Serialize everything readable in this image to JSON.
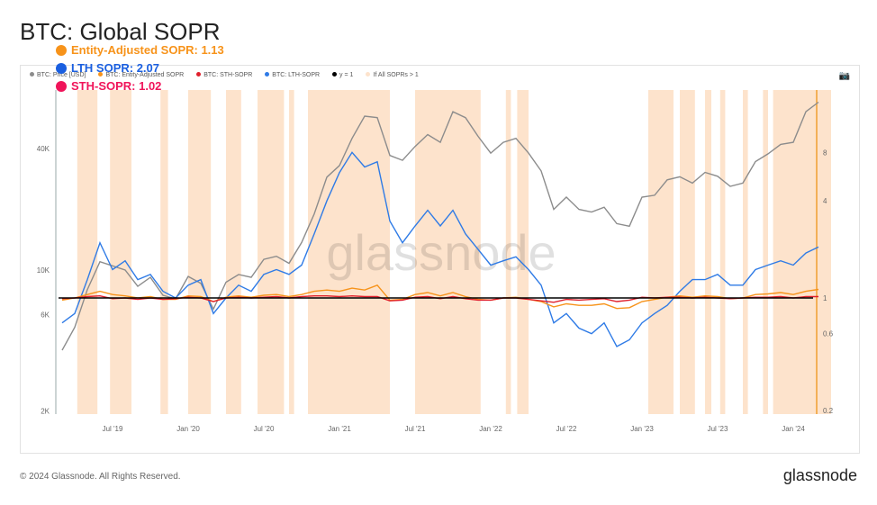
{
  "title": "BTC: Global SOPR",
  "footer": "© 2024 Glassnode. All Rights Reserved.",
  "brand": "glassnode",
  "watermark": "glassnode",
  "camera_icon": "camera-icon",
  "annotations": [
    {
      "label": "Entity-Adjusted SOPR: 1.13",
      "color": "#f7931a"
    },
    {
      "label": "LTH SOPR: 2.07",
      "color": "#1a5fe0"
    },
    {
      "label": "STH-SOPR: 1.02",
      "color": "#f0145a"
    }
  ],
  "chart_data": {
    "type": "line",
    "title": "BTC: Global SOPR",
    "x_start": "2019-03",
    "x_step": "month",
    "legend": [
      {
        "name": "BTC: Price [USD]",
        "color": "#8c8c8c"
      },
      {
        "name": "BTC: Entity-Adjusted SOPR",
        "color": "#f7931a"
      },
      {
        "name": "BTC: STH-SOPR",
        "color": "#e0202c"
      },
      {
        "name": "BTC: LTH-SOPR",
        "color": "#2f7be6"
      },
      {
        "name": "y = 1",
        "color": "#000000"
      },
      {
        "name": "If All SOPRs > 1",
        "color": "#fde3cc"
      }
    ],
    "x_ticks": [
      {
        "label": "Jul '19",
        "m": 4
      },
      {
        "label": "Jan '20",
        "m": 10
      },
      {
        "label": "Jul '20",
        "m": 16
      },
      {
        "label": "Jan '21",
        "m": 22
      },
      {
        "label": "Jul '21",
        "m": 28
      },
      {
        "label": "Jan '22",
        "m": 34
      },
      {
        "label": "Jul '22",
        "m": 40
      },
      {
        "label": "Jan '23",
        "m": 46
      },
      {
        "label": "Jul '23",
        "m": 52
      },
      {
        "label": "Jan '24",
        "m": 58
      }
    ],
    "y_left": {
      "scale": "log",
      "range": [
        2000,
        80000
      ],
      "ticks": [
        {
          "label": "2K",
          "v": 2000
        },
        {
          "label": "6K",
          "v": 6000
        },
        {
          "label": "10K",
          "v": 10000
        },
        {
          "label": "40K",
          "v": 40000
        }
      ]
    },
    "y_right": {
      "scale": "log",
      "range": [
        0.2,
        14
      ],
      "ticks": [
        {
          "label": "0.2",
          "v": 0.2
        },
        {
          "label": "0.6",
          "v": 0.6
        },
        {
          "label": "1",
          "v": 1
        },
        {
          "label": "4",
          "v": 4
        },
        {
          "label": "8",
          "v": 8
        }
      ]
    },
    "series": [
      {
        "name": "BTC: Price [USD]",
        "axis": "left",
        "values": [
          4000,
          5200,
          8000,
          11000,
          10500,
          10000,
          8300,
          9200,
          7500,
          7200,
          9300,
          8600,
          6400,
          8700,
          9500,
          9200,
          11300,
          11700,
          10800,
          13700,
          19000,
          28900,
          33000,
          45000,
          58000,
          57000,
          37000,
          35000,
          41000,
          47000,
          43000,
          61000,
          57000,
          46000,
          38000,
          43000,
          45000,
          38000,
          31000,
          20000,
          23000,
          20000,
          19400,
          20500,
          17000,
          16500,
          23000,
          23500,
          28000,
          29000,
          27000,
          30500,
          29200,
          26000,
          27000,
          34500,
          37700,
          42000,
          43000,
          61000,
          68000
        ]
      },
      {
        "name": "BTC: LTH-SOPR",
        "axis": "right",
        "values": [
          0.7,
          0.8,
          1.3,
          2.2,
          1.5,
          1.7,
          1.3,
          1.4,
          1.1,
          1.0,
          1.2,
          1.3,
          0.8,
          1.0,
          1.2,
          1.1,
          1.4,
          1.5,
          1.4,
          1.6,
          2.5,
          4,
          6,
          8,
          6.5,
          7,
          3,
          2.2,
          2.8,
          3.5,
          2.8,
          3.5,
          2.5,
          2.0,
          1.6,
          1.7,
          1.8,
          1.5,
          1.2,
          0.7,
          0.8,
          0.65,
          0.6,
          0.7,
          0.5,
          0.55,
          0.7,
          0.8,
          0.9,
          1.1,
          1.3,
          1.3,
          1.4,
          1.2,
          1.2,
          1.5,
          1.6,
          1.7,
          1.6,
          1.9,
          2.07
        ]
      },
      {
        "name": "BTC: Entity-Adjusted SOPR",
        "axis": "right",
        "values": [
          0.97,
          1.0,
          1.05,
          1.1,
          1.05,
          1.03,
          1.0,
          1.02,
          0.98,
          0.98,
          1.03,
          1.02,
          0.95,
          1.01,
          1.03,
          1.01,
          1.04,
          1.05,
          1.02,
          1.05,
          1.1,
          1.12,
          1.1,
          1.15,
          1.12,
          1.2,
          0.97,
          0.98,
          1.05,
          1.08,
          1.03,
          1.08,
          1.02,
          0.98,
          0.97,
          1.0,
          1.01,
          0.98,
          0.95,
          0.88,
          0.92,
          0.9,
          0.9,
          0.92,
          0.86,
          0.87,
          0.95,
          0.98,
          1.01,
          1.03,
          1.01,
          1.03,
          1.02,
          0.99,
          1.0,
          1.05,
          1.06,
          1.08,
          1.05,
          1.1,
          1.13
        ]
      },
      {
        "name": "BTC: STH-SOPR",
        "axis": "right",
        "values": [
          0.99,
          1.0,
          1.02,
          1.03,
          0.99,
          1.0,
          0.98,
          1.0,
          0.98,
          0.99,
          1.01,
          1.0,
          0.95,
          1.0,
          1.01,
          1.0,
          1.01,
          1.02,
          1.0,
          1.02,
          1.03,
          1.03,
          1.02,
          1.03,
          1.02,
          1.02,
          0.96,
          0.97,
          1.01,
          1.02,
          0.99,
          1.02,
          0.99,
          0.97,
          0.97,
          1.0,
          1.0,
          0.98,
          0.96,
          0.94,
          0.98,
          0.97,
          0.98,
          0.99,
          0.95,
          0.97,
          1.01,
          1.0,
          1.01,
          1.01,
          1.0,
          1.01,
          1.0,
          0.99,
          1.0,
          1.01,
          1.01,
          1.02,
          1.0,
          1.02,
          1.02
        ]
      }
    ],
    "shaded_ranges_month": [
      [
        1.2,
        2.8
      ],
      [
        3.8,
        5.5
      ],
      [
        7.8,
        8.4
      ],
      [
        10,
        11.8
      ],
      [
        13,
        14.2
      ],
      [
        15.5,
        17.6
      ],
      [
        18,
        18.4
      ],
      [
        19.5,
        26
      ],
      [
        28,
        33.2
      ],
      [
        35.2,
        35.6
      ],
      [
        36.1,
        37
      ],
      [
        46.5,
        48.5
      ],
      [
        49,
        50.2
      ],
      [
        51,
        51.5
      ],
      [
        52.2,
        52.6
      ],
      [
        54,
        54.4
      ],
      [
        55.6,
        56
      ],
      [
        56.4,
        61
      ]
    ]
  }
}
